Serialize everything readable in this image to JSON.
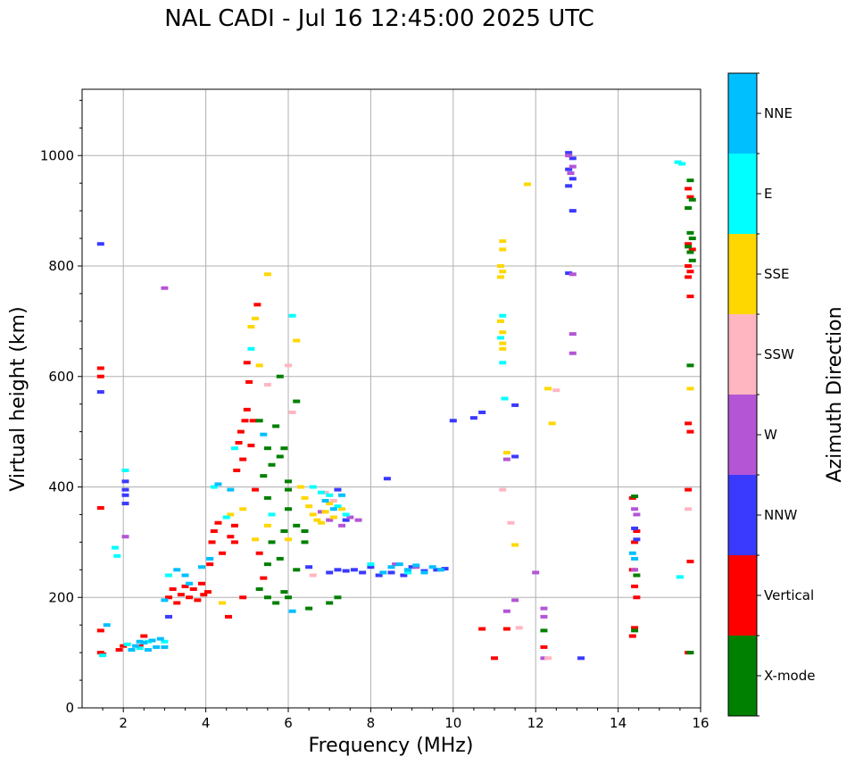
{
  "chart_data": {
    "type": "scatter",
    "title": "NAL CADI - Jul 16 12:45:00 2025 UTC",
    "xlabel": "Frequency (MHz)",
    "ylabel": "Virtual height (km)",
    "colorbar_label": "Azimuth Direction",
    "xlim": [
      1,
      16
    ],
    "ylim": [
      0,
      1120
    ],
    "x_ticks": [
      2,
      4,
      6,
      8,
      10,
      12,
      14,
      16
    ],
    "y_ticks": [
      0,
      200,
      400,
      600,
      800,
      1000
    ],
    "grid": true,
    "categories": [
      {
        "name": "X-mode",
        "color": "#008000"
      },
      {
        "name": "Vertical",
        "color": "#ff0000"
      },
      {
        "name": "NNW",
        "color": "#3a3aff"
      },
      {
        "name": "W",
        "color": "#b455d6"
      },
      {
        "name": "SSW",
        "color": "#ffb6c1"
      },
      {
        "name": "SSE",
        "color": "#ffd700"
      },
      {
        "name": "E",
        "color": "#00ffff"
      },
      {
        "name": "NNE",
        "color": "#00bfff"
      }
    ],
    "series": [
      {
        "name": "Vertical",
        "points": [
          [
            1.45,
            100
          ],
          [
            1.5,
            97
          ],
          [
            1.45,
            140
          ],
          [
            1.45,
            362
          ],
          [
            1.45,
            615
          ],
          [
            1.45,
            600
          ],
          [
            1.9,
            105
          ],
          [
            2.0,
            112
          ],
          [
            2.4,
            112
          ],
          [
            2.5,
            130
          ],
          [
            3.1,
            200
          ],
          [
            3.2,
            215
          ],
          [
            3.3,
            190
          ],
          [
            3.4,
            205
          ],
          [
            3.5,
            220
          ],
          [
            3.6,
            200
          ],
          [
            3.7,
            215
          ],
          [
            3.8,
            195
          ],
          [
            3.9,
            225
          ],
          [
            3.95,
            205
          ],
          [
            4.05,
            210
          ],
          [
            4.1,
            260
          ],
          [
            4.15,
            300
          ],
          [
            4.2,
            320
          ],
          [
            4.3,
            335
          ],
          [
            4.4,
            280
          ],
          [
            4.55,
            165
          ],
          [
            4.6,
            310
          ],
          [
            4.7,
            300
          ],
          [
            4.75,
            430
          ],
          [
            4.8,
            480
          ],
          [
            4.85,
            500
          ],
          [
            4.9,
            450
          ],
          [
            4.95,
            520
          ],
          [
            5.0,
            540
          ],
          [
            5.1,
            475
          ],
          [
            5.15,
            520
          ],
          [
            5.2,
            395
          ],
          [
            5.3,
            280
          ],
          [
            5.4,
            235
          ],
          [
            4.7,
            330
          ],
          [
            4.9,
            200
          ],
          [
            5.05,
            590
          ],
          [
            5.0,
            625
          ],
          [
            5.25,
            730
          ],
          [
            10.7,
            143
          ],
          [
            11.0,
            90
          ],
          [
            11.3,
            143
          ],
          [
            12.2,
            110
          ],
          [
            14.35,
            380
          ],
          [
            14.4,
            300
          ],
          [
            14.45,
            320
          ],
          [
            14.35,
            250
          ],
          [
            14.4,
            220
          ],
          [
            14.45,
            200
          ],
          [
            14.4,
            145
          ],
          [
            14.35,
            130
          ],
          [
            15.7,
            940
          ],
          [
            15.75,
            925
          ],
          [
            15.7,
            840
          ],
          [
            15.8,
            830
          ],
          [
            15.7,
            800
          ],
          [
            15.75,
            790
          ],
          [
            15.7,
            780
          ],
          [
            15.75,
            745
          ],
          [
            15.7,
            515
          ],
          [
            15.75,
            500
          ],
          [
            15.7,
            395
          ],
          [
            15.75,
            265
          ],
          [
            15.7,
            100
          ]
        ]
      },
      {
        "name": "X-mode",
        "points": [
          [
            5.5,
            200
          ],
          [
            5.7,
            190
          ],
          [
            5.9,
            210
          ],
          [
            6.0,
            200
          ],
          [
            6.2,
            250
          ],
          [
            5.3,
            215
          ],
          [
            5.5,
            260
          ],
          [
            5.6,
            300
          ],
          [
            5.8,
            270
          ],
          [
            5.9,
            320
          ],
          [
            6.0,
            360
          ],
          [
            5.5,
            380
          ],
          [
            5.4,
            420
          ],
          [
            5.6,
            440
          ],
          [
            5.8,
            455
          ],
          [
            5.9,
            470
          ],
          [
            6.0,
            410
          ],
          [
            5.5,
            470
          ],
          [
            5.3,
            520
          ],
          [
            5.7,
            510
          ],
          [
            6.0,
            395
          ],
          [
            6.2,
            555
          ],
          [
            6.4,
            300
          ],
          [
            6.4,
            320
          ],
          [
            6.5,
            180
          ],
          [
            7.0,
            190
          ],
          [
            7.2,
            200
          ],
          [
            5.8,
            600
          ],
          [
            6.2,
            330
          ],
          [
            12.2,
            140
          ],
          [
            14.4,
            383
          ],
          [
            14.45,
            240
          ],
          [
            14.4,
            140
          ],
          [
            15.75,
            955
          ],
          [
            15.8,
            920
          ],
          [
            15.7,
            905
          ],
          [
            15.75,
            860
          ],
          [
            15.8,
            850
          ],
          [
            15.7,
            835
          ],
          [
            15.75,
            825
          ],
          [
            15.8,
            810
          ],
          [
            15.75,
            620
          ],
          [
            15.75,
            100
          ]
        ]
      },
      {
        "name": "NNW",
        "points": [
          [
            1.45,
            840
          ],
          [
            1.45,
            572
          ],
          [
            2.05,
            410
          ],
          [
            2.05,
            395
          ],
          [
            2.05,
            385
          ],
          [
            2.05,
            370
          ],
          [
            3.1,
            165
          ],
          [
            6.5,
            255
          ],
          [
            7.0,
            245
          ],
          [
            7.2,
            250
          ],
          [
            7.4,
            248
          ],
          [
            7.6,
            250
          ],
          [
            7.8,
            245
          ],
          [
            8.0,
            255
          ],
          [
            8.2,
            240
          ],
          [
            8.5,
            245
          ],
          [
            8.8,
            240
          ],
          [
            9.0,
            255
          ],
          [
            9.3,
            248
          ],
          [
            9.6,
            250
          ],
          [
            9.8,
            252
          ],
          [
            8.4,
            415
          ],
          [
            10.0,
            520
          ],
          [
            10.5,
            525
          ],
          [
            10.7,
            535
          ],
          [
            11.5,
            548
          ],
          [
            11.5,
            455
          ],
          [
            12.8,
            1005
          ],
          [
            12.9,
            995
          ],
          [
            12.8,
            975
          ],
          [
            12.9,
            958
          ],
          [
            12.8,
            945
          ],
          [
            12.9,
            900
          ],
          [
            12.8,
            787
          ],
          [
            13.1,
            90
          ],
          [
            14.4,
            325
          ],
          [
            14.45,
            305
          ],
          [
            7.2,
            395
          ],
          [
            7.4,
            340
          ]
        ]
      },
      {
        "name": "W",
        "points": [
          [
            2.05,
            310
          ],
          [
            3.0,
            760
          ],
          [
            12.8,
            1000
          ],
          [
            12.9,
            980
          ],
          [
            12.85,
            968
          ],
          [
            12.9,
            785
          ],
          [
            12.9,
            677
          ],
          [
            12.9,
            642
          ],
          [
            11.3,
            450
          ],
          [
            11.5,
            195
          ],
          [
            11.3,
            175
          ],
          [
            12.2,
            180
          ],
          [
            12.2,
            165
          ],
          [
            12.2,
            90
          ],
          [
            14.4,
            360
          ],
          [
            14.45,
            350
          ],
          [
            14.4,
            250
          ],
          [
            6.8,
            355
          ],
          [
            7.0,
            340
          ],
          [
            7.3,
            330
          ],
          [
            7.5,
            345
          ],
          [
            7.7,
            340
          ],
          [
            8.6,
            260
          ],
          [
            9.1,
            255
          ],
          [
            12.0,
            245
          ]
        ]
      },
      {
        "name": "SSW",
        "points": [
          [
            5.5,
            585
          ],
          [
            6.0,
            620
          ],
          [
            6.1,
            535
          ],
          [
            11.2,
            395
          ],
          [
            11.4,
            335
          ],
          [
            11.6,
            145
          ],
          [
            12.3,
            90
          ],
          [
            12.5,
            575
          ],
          [
            15.7,
            360
          ],
          [
            6.6,
            240
          ],
          [
            6.9,
            390
          ],
          [
            7.1,
            375
          ]
        ]
      },
      {
        "name": "SSE",
        "points": [
          [
            5.1,
            690
          ],
          [
            5.2,
            705
          ],
          [
            5.3,
            620
          ],
          [
            5.5,
            785
          ],
          [
            6.2,
            665
          ],
          [
            6.3,
            400
          ],
          [
            6.4,
            380
          ],
          [
            6.5,
            365
          ],
          [
            6.6,
            350
          ],
          [
            6.7,
            340
          ],
          [
            6.8,
            335
          ],
          [
            6.9,
            355
          ],
          [
            7.0,
            370
          ],
          [
            7.1,
            345
          ],
          [
            7.3,
            360
          ],
          [
            11.2,
            845
          ],
          [
            11.2,
            830
          ],
          [
            11.15,
            800
          ],
          [
            11.2,
            790
          ],
          [
            11.15,
            780
          ],
          [
            11.15,
            700
          ],
          [
            11.2,
            680
          ],
          [
            11.2,
            660
          ],
          [
            11.2,
            650
          ],
          [
            11.3,
            462
          ],
          [
            11.5,
            295
          ],
          [
            11.8,
            948
          ],
          [
            12.3,
            578
          ],
          [
            12.4,
            515
          ],
          [
            15.75,
            578
          ],
          [
            4.6,
            350
          ],
          [
            4.9,
            360
          ],
          [
            5.2,
            305
          ],
          [
            5.5,
            330
          ],
          [
            6.0,
            305
          ],
          [
            4.4,
            190
          ]
        ]
      },
      {
        "name": "E",
        "points": [
          [
            1.5,
            95
          ],
          [
            1.8,
            290
          ],
          [
            1.85,
            275
          ],
          [
            2.05,
            430
          ],
          [
            2.1,
            115
          ],
          [
            2.4,
            108
          ],
          [
            2.6,
            120
          ],
          [
            3.0,
            120
          ],
          [
            3.1,
            240
          ],
          [
            4.2,
            400
          ],
          [
            4.5,
            345
          ],
          [
            4.7,
            470
          ],
          [
            5.1,
            650
          ],
          [
            5.6,
            350
          ],
          [
            6.1,
            710
          ],
          [
            6.6,
            400
          ],
          [
            6.8,
            390
          ],
          [
            7.0,
            385
          ],
          [
            7.2,
            365
          ],
          [
            7.4,
            350
          ],
          [
            11.2,
            710
          ],
          [
            11.15,
            670
          ],
          [
            11.2,
            625
          ],
          [
            11.25,
            560
          ],
          [
            15.45,
            988
          ],
          [
            15.55,
            985
          ],
          [
            15.5,
            237
          ],
          [
            8.0,
            260
          ],
          [
            8.9,
            245
          ]
        ]
      },
      {
        "name": "NNE",
        "points": [
          [
            1.6,
            150
          ],
          [
            2.2,
            105
          ],
          [
            2.3,
            112
          ],
          [
            2.4,
            120
          ],
          [
            2.5,
            118
          ],
          [
            2.6,
            105
          ],
          [
            2.7,
            122
          ],
          [
            2.8,
            110
          ],
          [
            2.9,
            125
          ],
          [
            3.0,
            110
          ],
          [
            3.0,
            195
          ],
          [
            3.3,
            250
          ],
          [
            3.5,
            240
          ],
          [
            3.6,
            225
          ],
          [
            3.9,
            255
          ],
          [
            4.1,
            270
          ],
          [
            4.3,
            405
          ],
          [
            4.6,
            395
          ],
          [
            5.4,
            495
          ],
          [
            6.1,
            175
          ],
          [
            6.9,
            375
          ],
          [
            7.1,
            360
          ],
          [
            7.3,
            385
          ],
          [
            8.3,
            245
          ],
          [
            8.5,
            255
          ],
          [
            8.7,
            260
          ],
          [
            8.9,
            250
          ],
          [
            9.1,
            258
          ],
          [
            9.3,
            245
          ],
          [
            9.5,
            255
          ],
          [
            9.7,
            250
          ],
          [
            14.35,
            280
          ],
          [
            14.4,
            270
          ]
        ]
      }
    ]
  }
}
